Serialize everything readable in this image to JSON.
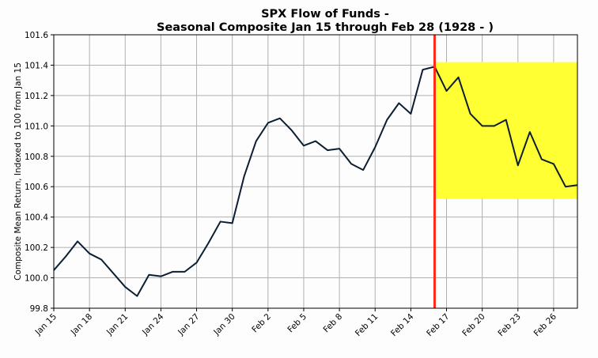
{
  "chart_data": {
    "type": "line",
    "title": "SPX Flow of Funds -",
    "subtitle": "Seasonal Composite Jan 15 through Feb 28 (1928 - )",
    "xlabel": "",
    "ylabel": "Composite Mean Return, Indexed to 100 from Jan 15",
    "ylim": [
      99.8,
      101.6
    ],
    "yticks": [
      "99.8",
      "100.0",
      "100.2",
      "100.4",
      "100.6",
      "100.8",
      "101.0",
      "101.2",
      "101.4",
      "101.6"
    ],
    "xticks": [
      "Jan 15",
      "Jan 18",
      "Jan 21",
      "Jan 24",
      "Jan 27",
      "Jan 30",
      "Feb 2",
      "Feb 5",
      "Feb 8",
      "Feb 11",
      "Feb 14",
      "Feb 17",
      "Feb 20",
      "Feb 23",
      "Feb 26"
    ],
    "grid": true,
    "line_color": "#0b1e33",
    "marker_line_color": "#ff2a1a",
    "highlight_color": "#ffff33",
    "marker_line_x": "Feb 16",
    "highlight_region": {
      "x_from": "Feb 16",
      "x_to": "Feb 28",
      "y_from": 100.52,
      "y_to": 101.42
    },
    "series": [
      {
        "x": [
          "Jan 15",
          "Jan 16",
          "Jan 17",
          "Jan 18",
          "Jan 19",
          "Jan 20",
          "Jan 21",
          "Jan 22",
          "Jan 23",
          "Jan 24",
          "Jan 25",
          "Jan 26",
          "Jan 27",
          "Jan 28",
          "Jan 29",
          "Jan 30",
          "Jan 31",
          "Feb 1",
          "Feb 2",
          "Feb 3",
          "Feb 4",
          "Feb 5",
          "Feb 6",
          "Feb 7",
          "Feb 8",
          "Feb 9",
          "Feb 10",
          "Feb 11",
          "Feb 12",
          "Feb 13",
          "Feb 14",
          "Feb 15",
          "Feb 16",
          "Feb 17",
          "Feb 18",
          "Feb 19",
          "Feb 20",
          "Feb 21",
          "Feb 22",
          "Feb 23",
          "Feb 24",
          "Feb 25",
          "Feb 26",
          "Feb 27",
          "Feb 28"
        ],
        "values": [
          100.05,
          100.14,
          100.24,
          100.16,
          100.12,
          100.03,
          99.94,
          99.88,
          100.02,
          100.01,
          100.04,
          100.04,
          100.1,
          100.23,
          100.37,
          100.36,
          100.67,
          100.9,
          101.02,
          101.05,
          100.97,
          100.87,
          100.9,
          100.84,
          100.85,
          100.75,
          100.71,
          100.86,
          101.04,
          101.15,
          101.08,
          101.37,
          101.39,
          101.23,
          101.32,
          101.08,
          101.0,
          101.0,
          101.04,
          100.74,
          100.96,
          100.78,
          100.75,
          100.6,
          100.61
        ]
      }
    ]
  }
}
